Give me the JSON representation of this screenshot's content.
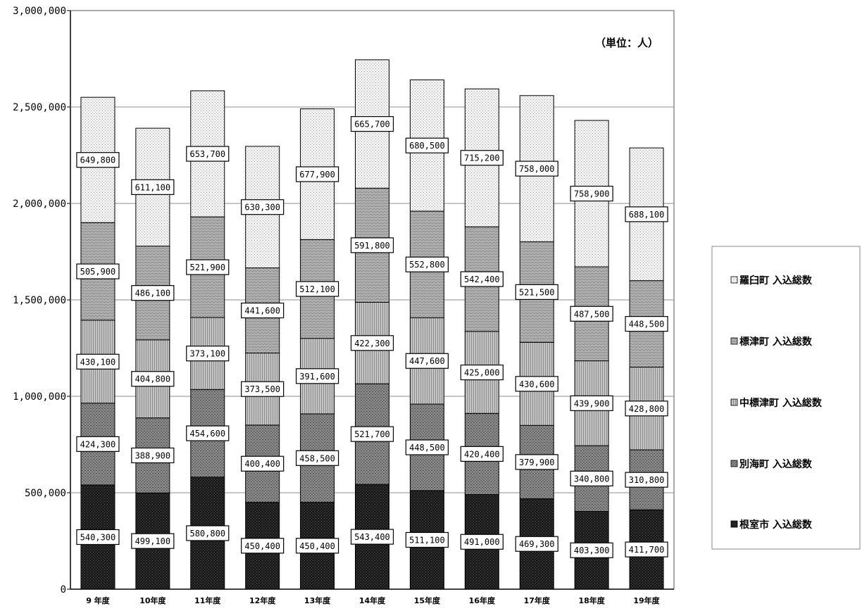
{
  "chart_data": {
    "type": "bar",
    "stacked": true,
    "unit_label": "（単位：人）",
    "categories": [
      "9 年度",
      "10年度",
      "11年度",
      "12年度",
      "13年度",
      "14年度",
      "15年度",
      "16年度",
      "17年度",
      "18年度",
      "19年度"
    ],
    "series": [
      {
        "name": "根室市 入込総数",
        "color": "#1c1c1c",
        "values": [
          540300,
          499100,
          580800,
          450400,
          450400,
          543400,
          511100,
          491000,
          469300,
          403300,
          411700
        ],
        "labels": [
          "540,300",
          "499,100",
          "580,800",
          "450,400",
          "450,400",
          "543,400",
          "511,100",
          "491,000",
          "469,300",
          "403,300",
          "411,700"
        ]
      },
      {
        "name": "別海町 入込総数",
        "color": "#707070",
        "values": [
          424300,
          388900,
          454600,
          400400,
          458500,
          521700,
          448500,
          420400,
          379900,
          340800,
          310800
        ],
        "labels": [
          "424,300",
          "388,900",
          "454,600",
          "400,400",
          "458,500",
          "521,700",
          "448,500",
          "420,400",
          "379,900",
          "340,800",
          "310,800"
        ]
      },
      {
        "name": "中標津町 入込総数",
        "color": "#b4b4b4",
        "values": [
          430100,
          404800,
          373100,
          373500,
          391600,
          422300,
          447600,
          425000,
          430600,
          439900,
          428800
        ],
        "labels": [
          "430,100",
          "404,800",
          "373,100",
          "373,500",
          "391,600",
          "422,300",
          "447,600",
          "425,000",
          "430,600",
          "439,900",
          "428,800"
        ]
      },
      {
        "name": "標津町 入込総数",
        "color": "#9a9a9a",
        "values": [
          505900,
          486100,
          521900,
          441600,
          512100,
          591800,
          552800,
          542400,
          521500,
          487500,
          448500
        ],
        "labels": [
          "505,900",
          "486,100",
          "521,900",
          "441,600",
          "512,100",
          "591,800",
          "552,800",
          "542,400",
          "521,500",
          "487,500",
          "448,500"
        ]
      },
      {
        "name": "羅臼町 入込総数",
        "color": "#e6e6e6",
        "values": [
          649800,
          611100,
          653700,
          630300,
          677900,
          665700,
          680500,
          715200,
          758000,
          758900,
          688100
        ],
        "labels": [
          "649,800",
          "611,100",
          "653,700",
          "630,300",
          "677,900",
          "665,700",
          "680,500",
          "715,200",
          "758,000",
          "758,900",
          "688,100"
        ]
      }
    ],
    "y_ticks": [
      "0",
      "500,000",
      "1,000,000",
      "1,500,000",
      "2,000,000",
      "2,500,000",
      "3,000,000"
    ],
    "ylim": [
      0,
      3000000
    ],
    "grid": true,
    "legend_position": "right",
    "legend_order": [
      "羅臼町 入込総数",
      "標津町 入込総数",
      "中標津町 入込総数",
      "別海町 入込総数",
      "根室市 入込総数"
    ]
  }
}
